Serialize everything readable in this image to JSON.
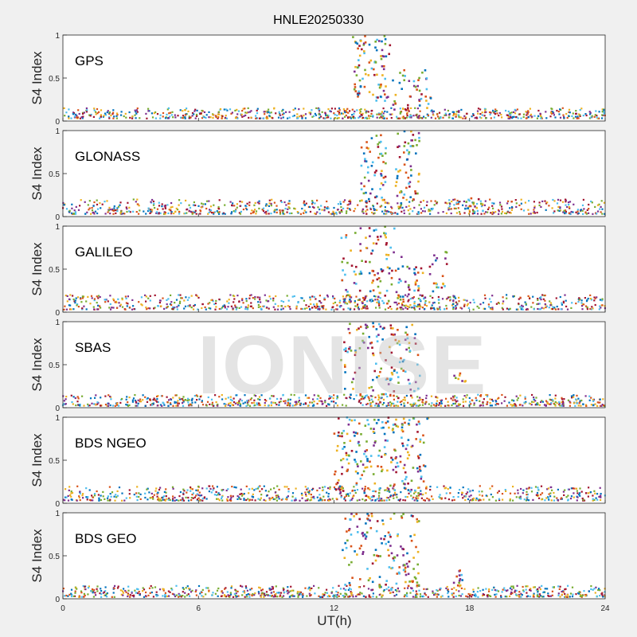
{
  "figure_title": "HNLE20250330",
  "xlabel": "UT(h)",
  "watermark": "IONISE",
  "colors": [
    "#0072BD",
    "#D95319",
    "#EDB120",
    "#7E2F8E",
    "#77AC30",
    "#4DBEEE",
    "#A2142F"
  ],
  "chart_data": [
    {
      "type": "scatter",
      "panel_label": "GPS",
      "ylabel": "S4 Index",
      "xlim": [
        0,
        24
      ],
      "ylim": [
        0,
        1
      ],
      "yticks": [
        0,
        0.5,
        1
      ],
      "ytick_labels": [
        "0",
        "0.5",
        "1"
      ],
      "baseline": [
        0.03,
        0.15
      ],
      "bursts": [
        {
          "x": [
            12.8,
            14.5
          ],
          "y": [
            0.2,
            1.0
          ],
          "count": 90
        },
        {
          "x": [
            14.5,
            16.3
          ],
          "y": [
            0.1,
            0.6
          ],
          "count": 45
        }
      ]
    },
    {
      "type": "scatter",
      "panel_label": "GLONASS",
      "ylabel": "S4 Index",
      "xlim": [
        0,
        24
      ],
      "ylim": [
        0,
        1
      ],
      "yticks": [
        0,
        0.5,
        1
      ],
      "ytick_labels": [
        "0",
        "0.5",
        "1"
      ],
      "baseline": [
        0.03,
        0.2
      ],
      "bursts": [
        {
          "x": [
            13.2,
            14.3
          ],
          "y": [
            0.15,
            0.95
          ],
          "count": 60
        },
        {
          "x": [
            14.7,
            15.8
          ],
          "y": [
            0.15,
            1.0
          ],
          "count": 60
        },
        {
          "x": [
            17.8,
            18.6
          ],
          "y": [
            0.05,
            0.25
          ],
          "count": 15
        }
      ]
    },
    {
      "type": "scatter",
      "panel_label": "GALILEO",
      "ylabel": "S4 Index",
      "xlim": [
        0,
        24
      ],
      "ylim": [
        0,
        1
      ],
      "yticks": [
        0,
        0.5,
        1
      ],
      "ytick_labels": [
        "0",
        "0.5",
        "1"
      ],
      "baseline": [
        0.03,
        0.2
      ],
      "bursts": [
        {
          "x": [
            12.3,
            14.8
          ],
          "y": [
            0.1,
            1.0
          ],
          "count": 100
        },
        {
          "x": [
            14.8,
            17.0
          ],
          "y": [
            0.1,
            0.7
          ],
          "count": 60
        }
      ]
    },
    {
      "type": "scatter",
      "panel_label": "SBAS",
      "ylabel": "S4 Index",
      "xlim": [
        0,
        24
      ],
      "ylim": [
        0,
        1
      ],
      "yticks": [
        0,
        0.5,
        1
      ],
      "ytick_labels": [
        "0",
        "0.5",
        "1"
      ],
      "baseline": [
        0.02,
        0.15
      ],
      "bursts": [
        {
          "x": [
            12.3,
            15.8
          ],
          "y": [
            0.1,
            1.0
          ],
          "count": 140
        },
        {
          "x": [
            17.3,
            17.9
          ],
          "y": [
            0.3,
            0.45
          ],
          "count": 8
        }
      ]
    },
    {
      "type": "scatter",
      "panel_label": "BDS NGEO",
      "ylabel": "S4 Index",
      "xlim": [
        0,
        24
      ],
      "ylim": [
        0,
        1
      ],
      "yticks": [
        0,
        0.5,
        1
      ],
      "ytick_labels": [
        "0",
        "0.5",
        "1"
      ],
      "baseline": [
        0.03,
        0.2
      ],
      "bursts": [
        {
          "x": [
            12.0,
            16.2
          ],
          "y": [
            0.1,
            1.0
          ],
          "count": 220
        }
      ]
    },
    {
      "type": "scatter",
      "panel_label": "BDS GEO",
      "ylabel": "S4 Index",
      "xlim": [
        0,
        24
      ],
      "ylim": [
        0,
        1
      ],
      "yticks": [
        0,
        0.5,
        1
      ],
      "ytick_labels": [
        "0",
        "0.5",
        "1"
      ],
      "baseline": [
        0.02,
        0.15
      ],
      "bursts": [
        {
          "x": [
            12.3,
            15.8
          ],
          "y": [
            0.1,
            1.0
          ],
          "count": 150
        },
        {
          "x": [
            17.3,
            17.7
          ],
          "y": [
            0.15,
            0.35
          ],
          "count": 12
        }
      ]
    }
  ],
  "xaxis": {
    "xticks": [
      0,
      6,
      12,
      18,
      24
    ],
    "xtick_labels": [
      "0",
      "6",
      "12",
      "18",
      "24"
    ]
  }
}
